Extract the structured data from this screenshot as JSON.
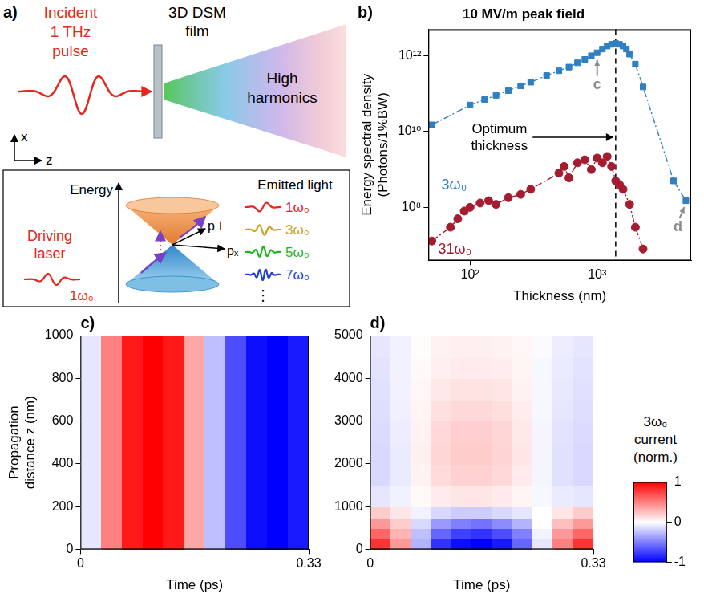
{
  "diagram": {
    "panel": "a)",
    "incident": [
      "Incident",
      "1 THz",
      "pulse"
    ],
    "film": [
      "3D DSM",
      "film"
    ],
    "output": [
      "High",
      "harmonics"
    ],
    "axes": [
      "x",
      "z"
    ],
    "inset": {
      "energy": "Energy",
      "momenta": [
        "p⊥",
        "pₓ"
      ],
      "driver": [
        "Driving",
        "laser"
      ],
      "driver_freq": "1ω₀",
      "emitted_title": "Emitted light",
      "emitted": [
        {
          "label": "1ω₀",
          "color": "#e8241e"
        },
        {
          "label": "3ω₀",
          "color": "#c9a227"
        },
        {
          "label": "5ω₀",
          "color": "#1fb51f"
        },
        {
          "label": "7ω₀",
          "color": "#1f3fd6"
        }
      ],
      "more": "⋮"
    }
  },
  "chart_data": [
    {
      "type": "line",
      "panel": "b)",
      "title": "10 MV/m peak field",
      "xlabel": "Thickness (nm)",
      "ylabel": [
        "Energy spectral density",
        "(Photons/1%BW)"
      ],
      "log": true,
      "grid": false,
      "xlim": [
        47,
        5500
      ],
      "ylim": [
        4000000.0,
        5000000000000.0
      ],
      "xticks": [
        {
          "value": 100,
          "label": "10²"
        },
        {
          "value": 1000,
          "label": "10³"
        }
      ],
      "yticks": [
        {
          "value": 100000000.0,
          "label": "10⁸"
        },
        {
          "value": 10000000000.0,
          "label": "10¹⁰"
        },
        {
          "value": 1000000000000.0,
          "label": "10¹²"
        }
      ],
      "series": [
        {
          "name": "3ω₀",
          "color": "#2f7fc1",
          "marker": "square",
          "line_style": "dashdot",
          "x": [
            50,
            100,
            130,
            160,
            200,
            250,
            300,
            400,
            500,
            600,
            700,
            800,
            900,
            1000,
            1100,
            1200,
            1300,
            1400,
            1500,
            1600,
            1700,
            1800,
            2000,
            2300,
            4000,
            5000
          ],
          "values": [
            15000000000.0,
            50000000000.0,
            70000000000.0,
            90000000000.0,
            120000000000.0,
            160000000000.0,
            200000000000.0,
            300000000000.0,
            400000000000.0,
            500000000000.0,
            650000000000.0,
            800000000000.0,
            1000000000000.0,
            1200000000000.0,
            1500000000000.0,
            1800000000000.0,
            2000000000000.0,
            2100000000000.0,
            2000000000000.0,
            1800000000000.0,
            1500000000000.0,
            1100000000000.0,
            600000000000.0,
            150000000000.0,
            500000000.0,
            150000000.0
          ]
        },
        {
          "name": "31ω₀",
          "color": "#a51c30",
          "marker": "circle",
          "line_style": "dashdot",
          "x": [
            50,
            70,
            80,
            90,
            100,
            120,
            140,
            160,
            200,
            250,
            300,
            500,
            550,
            600,
            700,
            800,
            900,
            1000,
            1100,
            1200,
            1300,
            1400,
            1500,
            1600,
            1800,
            2000,
            2300
          ],
          "values": [
            13000000.0,
            30000000.0,
            50000000.0,
            80000000.0,
            100000000.0,
            130000000.0,
            150000000.0,
            120000000.0,
            180000000.0,
            220000000.0,
            300000000.0,
            800000000.0,
            1200000000.0,
            600000000.0,
            1500000000.0,
            1800000000.0,
            1000000000.0,
            2000000000.0,
            1500000000.0,
            2200000000.0,
            1200000000.0,
            500000000.0,
            400000000.0,
            300000000.0,
            120000000.0,
            30000000.0,
            8000000.0
          ]
        }
      ],
      "annotations": [
        {
          "text": "c",
          "x": 1000,
          "y": 1200000000000.0
        },
        {
          "text": "d",
          "x": 5000,
          "y": 150000000.0
        }
      ],
      "vline": {
        "x": 1400,
        "label": [
          "Optimum",
          "thickness"
        ]
      }
    },
    {
      "type": "heatmap",
      "panel": "c)",
      "xlabel": "Time (ps)",
      "ylabel": [
        "Propagation",
        "distance z (nm)"
      ],
      "grid": false,
      "xlim": [
        0,
        0.33
      ],
      "xticks": [
        0,
        0.33
      ],
      "ylim": [
        0,
        1000
      ],
      "yticks": [
        0,
        200,
        400,
        600,
        800,
        1000
      ],
      "t_edges": [
        0,
        0.03,
        0.06,
        0.09,
        0.12,
        0.15,
        0.18,
        0.21,
        0.24,
        0.27,
        0.3,
        0.33
      ],
      "z_edges": [
        0,
        200,
        400,
        600,
        800,
        1000
      ],
      "cells": [
        [
          -0.1,
          0.5,
          0.9,
          1.0,
          0.9,
          0.35,
          -0.25,
          -0.7,
          -0.95,
          -1.0,
          -0.9
        ],
        [
          -0.1,
          0.5,
          0.9,
          1.0,
          0.9,
          0.35,
          -0.25,
          -0.7,
          -0.95,
          -1.0,
          -0.9
        ],
        [
          -0.1,
          0.5,
          0.9,
          1.0,
          0.9,
          0.35,
          -0.25,
          -0.7,
          -0.95,
          -1.0,
          -0.9
        ],
        [
          -0.1,
          0.5,
          0.9,
          1.0,
          0.9,
          0.35,
          -0.25,
          -0.7,
          -0.95,
          -1.0,
          -0.9
        ],
        [
          -0.1,
          0.5,
          0.9,
          1.0,
          0.9,
          0.35,
          -0.25,
          -0.7,
          -0.95,
          -1.0,
          -0.9
        ]
      ]
    },
    {
      "type": "heatmap",
      "panel": "d)",
      "xlabel": "Time (ps)",
      "grid": false,
      "xlim": [
        0,
        0.33
      ],
      "xticks": [
        0,
        0.33
      ],
      "ylim": [
        0,
        5000
      ],
      "yticks": [
        0,
        1000,
        2000,
        3000,
        4000,
        5000
      ],
      "t_edges": [
        0,
        0.03,
        0.06,
        0.09,
        0.12,
        0.15,
        0.18,
        0.21,
        0.24,
        0.27,
        0.3,
        0.33
      ],
      "z_edges": [
        0,
        250,
        500,
        750,
        1000,
        1500,
        2000,
        2500,
        3000,
        3500,
        4000,
        4500,
        5000
      ],
      "cells": [
        [
          0.8,
          0.4,
          -0.3,
          -0.8,
          -0.95,
          -1.0,
          -0.9,
          -0.6,
          -0.1,
          0.5,
          0.8
        ],
        [
          0.6,
          0.3,
          -0.25,
          -0.6,
          -0.75,
          -0.8,
          -0.7,
          -0.5,
          -0.05,
          0.4,
          0.6
        ],
        [
          0.4,
          0.2,
          -0.15,
          -0.4,
          -0.5,
          -0.55,
          -0.45,
          -0.3,
          0,
          0.25,
          0.4
        ],
        [
          0.2,
          0.1,
          -0.05,
          -0.15,
          -0.2,
          -0.2,
          -0.15,
          -0.1,
          0,
          0.1,
          0.2
        ],
        [
          -0.1,
          -0.05,
          0.02,
          0.08,
          0.1,
          0.1,
          0.08,
          0.04,
          -0.03,
          -0.08,
          -0.1
        ],
        [
          -0.15,
          -0.08,
          0.05,
          0.14,
          0.18,
          0.18,
          0.15,
          0.08,
          -0.04,
          -0.12,
          -0.15
        ],
        [
          -0.15,
          -0.08,
          0.06,
          0.16,
          0.2,
          0.2,
          0.17,
          0.1,
          -0.04,
          -0.12,
          -0.15
        ],
        [
          -0.14,
          -0.07,
          0.05,
          0.15,
          0.19,
          0.19,
          0.16,
          0.09,
          -0.04,
          -0.11,
          -0.14
        ],
        [
          -0.13,
          -0.06,
          0.04,
          0.12,
          0.15,
          0.15,
          0.13,
          0.07,
          -0.03,
          -0.1,
          -0.13
        ],
        [
          -0.12,
          -0.05,
          0.03,
          0.09,
          0.11,
          0.11,
          0.1,
          0.05,
          -0.03,
          -0.09,
          -0.12
        ],
        [
          -0.11,
          -0.05,
          0.02,
          0.06,
          0.08,
          0.08,
          0.07,
          0.04,
          -0.03,
          -0.08,
          -0.11
        ],
        [
          -0.1,
          -0.05,
          0.01,
          0.05,
          0.06,
          0.06,
          0.05,
          0.03,
          -0.02,
          -0.07,
          -0.1
        ]
      ],
      "colorbar": {
        "label": [
          "3ω₀",
          "current",
          "(norm.)"
        ],
        "range": [
          -1,
          1
        ],
        "ticks": [
          -1,
          0,
          1
        ]
      }
    }
  ]
}
